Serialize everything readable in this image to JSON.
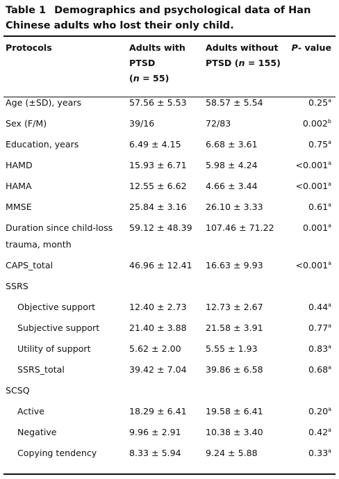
{
  "title": {
    "label": "Table 1",
    "text": "Demographics and psychological data of Han Chinese adults who lost their only child."
  },
  "header": {
    "protocols": "Protocols",
    "with": {
      "text": "Adults with PTSD",
      "open": "(",
      "n": "n",
      "rest": " = 55)"
    },
    "without": {
      "text": "Adults without PTSD",
      "open": "(",
      "n": "n",
      "rest": " = 155)"
    },
    "p": {
      "italic": "P",
      "rest": "- value"
    }
  },
  "rows": [
    {
      "label": "Age (±SD), years",
      "with": "57.56 ± 5.53",
      "without": "58.57 ± 5.54",
      "p": "0.25",
      "note": "a"
    },
    {
      "label": "Sex (F/M)",
      "with": "39/16",
      "without": "72/83",
      "p": "0.002",
      "note": "b"
    },
    {
      "label": "Education, years",
      "with": "6.49 ± 4.15",
      "without": "6.68 ± 3.61",
      "p": "0.75",
      "note": "a"
    },
    {
      "label": "HAMD",
      "with": "15.93 ± 6.71",
      "without": "5.98 ± 4.24",
      "p": "<0.001",
      "note": "a"
    },
    {
      "label": "HAMA",
      "with": "12.55 ± 6.62",
      "without": "4.66 ± 3.44",
      "p": "<0.001",
      "note": "a"
    },
    {
      "label": "MMSE",
      "with": "25.84 ± 3.16",
      "without": "26.10 ± 3.33",
      "p": "0.61",
      "note": "a"
    },
    {
      "label": "Duration since child-loss trauma, month",
      "with": "59.12 ± 48.39",
      "without": "107.46 ± 71.22",
      "p": "0.001",
      "note": "a"
    },
    {
      "label": "CAPS_total",
      "with": "46.96 ± 12.41",
      "without": "16.63 ± 9.93",
      "p": "<0.001",
      "note": "a"
    },
    {
      "label": "SSRS"
    },
    {
      "label": "Objective support",
      "indent": true,
      "with": "12.40 ± 2.73",
      "without": "12.73 ± 2.67",
      "p": "0.44",
      "note": "a"
    },
    {
      "label": "Subjective support",
      "indent": true,
      "with": "21.40 ± 3.88",
      "without": "21.58 ± 3.91",
      "p": "0.77",
      "note": "a"
    },
    {
      "label": "Utility of support",
      "indent": true,
      "with": "5.62 ± 2.00",
      "without": "5.55 ± 1.93",
      "p": "0.83",
      "note": "a"
    },
    {
      "label": "SSRS_total",
      "indent": true,
      "with": "39.42 ± 7.04",
      "without": "39.86 ± 6.58",
      "p": "0.68",
      "note": "a"
    },
    {
      "label": "SCSQ"
    },
    {
      "label": "Active",
      "indent": true,
      "with": "18.29 ± 6.41",
      "without": "19.58 ± 6.41",
      "p": "0.20",
      "note": "a"
    },
    {
      "label": "Negative",
      "indent": true,
      "with": "9.96 ± 2.91",
      "without": "10.38 ± 3.40",
      "p": "0.42",
      "note": "a"
    },
    {
      "label": "Copying tendency",
      "indent": true,
      "with": "8.33 ± 5.94",
      "without": "9.24 ± 5.88",
      "p": "0.33",
      "note": "a"
    }
  ]
}
